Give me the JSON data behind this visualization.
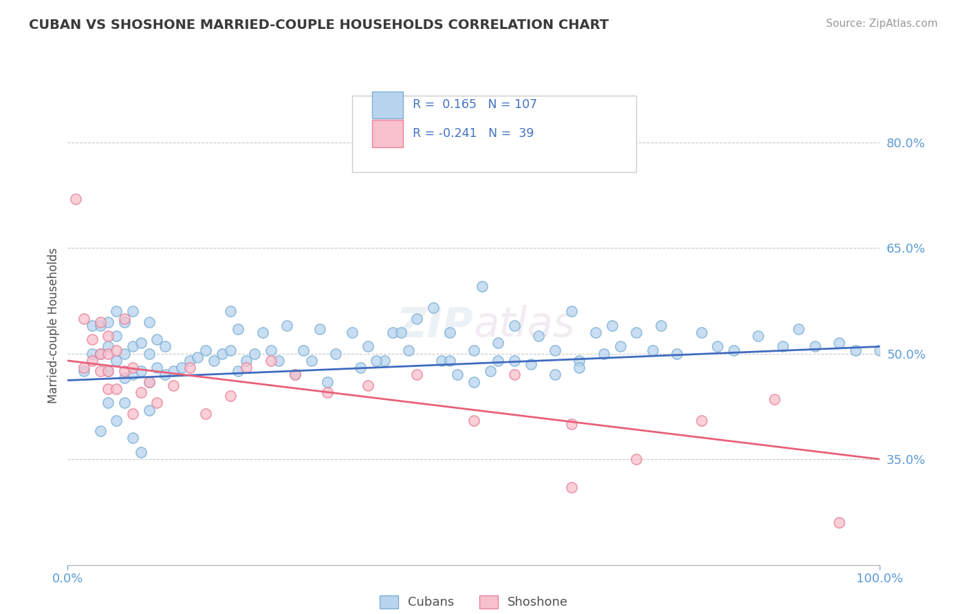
{
  "title": "CUBAN VS SHOSHONE MARRIED-COUPLE HOUSEHOLDS CORRELATION CHART",
  "source": "Source: ZipAtlas.com",
  "ylabel": "Married-couple Households",
  "background_color": "#ffffff",
  "plot_bg_color": "#ffffff",
  "grid_color": "#c8c8c8",
  "title_color": "#3a3a3a",
  "tick_color": "#5b9bd5",
  "xlim": [
    0.0,
    1.0
  ],
  "ylim": [
    0.2,
    0.88
  ],
  "yticks": [
    0.35,
    0.5,
    0.65,
    0.8
  ],
  "ytick_labels": [
    "35.0%",
    "50.0%",
    "65.0%",
    "80.0%"
  ],
  "xtick_labels": [
    "0.0%",
    "100.0%"
  ],
  "xticks": [
    0.0,
    1.0
  ],
  "blue_R": 0.165,
  "blue_N": 107,
  "pink_R": -0.241,
  "pink_N": 39,
  "blue_face_color": "#b8d4ee",
  "blue_edge_color": "#7bafd4",
  "pink_face_color": "#f7c0cc",
  "pink_edge_color": "#e8809a",
  "blue_line_color": "#3f6bbf",
  "pink_line_color": "#e8607a",
  "legend_blue_label": "Cubans",
  "legend_pink_label": "Shoshone",
  "blue_scatter_x": [
    0.02,
    0.03,
    0.03,
    0.04,
    0.04,
    0.05,
    0.05,
    0.05,
    0.06,
    0.06,
    0.06,
    0.07,
    0.07,
    0.07,
    0.08,
    0.08,
    0.08,
    0.09,
    0.09,
    0.1,
    0.1,
    0.1,
    0.11,
    0.11,
    0.12,
    0.12,
    0.13,
    0.14,
    0.15,
    0.16,
    0.17,
    0.18,
    0.19,
    0.2,
    0.21,
    0.21,
    0.22,
    0.23,
    0.24,
    0.25,
    0.26,
    0.27,
    0.28,
    0.29,
    0.3,
    0.31,
    0.32,
    0.33,
    0.35,
    0.36,
    0.37,
    0.39,
    0.4,
    0.42,
    0.43,
    0.45,
    0.46,
    0.47,
    0.48,
    0.5,
    0.52,
    0.53,
    0.55,
    0.57,
    0.58,
    0.6,
    0.62,
    0.63,
    0.65,
    0.66,
    0.67,
    0.68,
    0.7,
    0.72,
    0.73,
    0.75,
    0.78,
    0.8,
    0.82,
    0.85,
    0.88,
    0.9,
    0.92,
    0.95,
    0.97,
    1.0,
    0.38,
    0.41,
    0.2,
    0.1,
    0.07,
    0.08,
    0.09,
    0.05,
    0.06,
    0.04,
    0.51,
    0.53,
    0.47,
    0.5,
    0.55,
    0.6,
    0.63
  ],
  "blue_scatter_y": [
    0.475,
    0.5,
    0.54,
    0.5,
    0.54,
    0.475,
    0.51,
    0.545,
    0.49,
    0.525,
    0.56,
    0.465,
    0.5,
    0.545,
    0.47,
    0.51,
    0.56,
    0.475,
    0.515,
    0.46,
    0.5,
    0.545,
    0.48,
    0.52,
    0.47,
    0.51,
    0.475,
    0.48,
    0.49,
    0.495,
    0.505,
    0.49,
    0.5,
    0.505,
    0.475,
    0.535,
    0.49,
    0.5,
    0.53,
    0.505,
    0.49,
    0.54,
    0.47,
    0.505,
    0.49,
    0.535,
    0.46,
    0.5,
    0.53,
    0.48,
    0.51,
    0.49,
    0.53,
    0.505,
    0.55,
    0.565,
    0.49,
    0.53,
    0.47,
    0.505,
    0.475,
    0.515,
    0.54,
    0.485,
    0.525,
    0.505,
    0.56,
    0.49,
    0.53,
    0.5,
    0.54,
    0.51,
    0.53,
    0.505,
    0.54,
    0.5,
    0.53,
    0.51,
    0.505,
    0.525,
    0.51,
    0.535,
    0.51,
    0.515,
    0.505,
    0.505,
    0.49,
    0.53,
    0.56,
    0.42,
    0.43,
    0.38,
    0.36,
    0.43,
    0.405,
    0.39,
    0.595,
    0.49,
    0.49,
    0.46,
    0.49,
    0.47,
    0.48
  ],
  "pink_scatter_x": [
    0.01,
    0.02,
    0.02,
    0.03,
    0.03,
    0.04,
    0.04,
    0.04,
    0.05,
    0.05,
    0.05,
    0.05,
    0.06,
    0.06,
    0.07,
    0.07,
    0.08,
    0.08,
    0.09,
    0.1,
    0.11,
    0.13,
    0.15,
    0.17,
    0.2,
    0.22,
    0.25,
    0.28,
    0.32,
    0.37,
    0.43,
    0.5,
    0.55,
    0.62,
    0.7,
    0.78,
    0.87,
    0.95,
    0.62
  ],
  "pink_scatter_y": [
    0.72,
    0.48,
    0.55,
    0.49,
    0.52,
    0.5,
    0.475,
    0.545,
    0.5,
    0.475,
    0.45,
    0.525,
    0.505,
    0.45,
    0.475,
    0.55,
    0.48,
    0.415,
    0.445,
    0.46,
    0.43,
    0.455,
    0.48,
    0.415,
    0.44,
    0.48,
    0.49,
    0.47,
    0.445,
    0.455,
    0.47,
    0.405,
    0.47,
    0.4,
    0.35,
    0.405,
    0.435,
    0.26,
    0.31
  ],
  "blue_line_x": [
    0.0,
    1.0
  ],
  "blue_line_y": [
    0.462,
    0.51
  ],
  "pink_line_x": [
    0.0,
    1.0
  ],
  "pink_line_y": [
    0.49,
    0.35
  ]
}
